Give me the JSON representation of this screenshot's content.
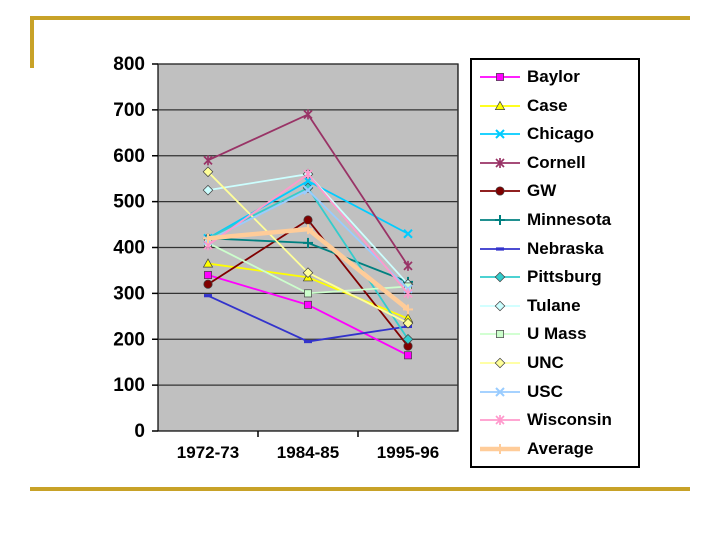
{
  "slide": {
    "accent_color": "#C8A228",
    "background_color": "#FFFFFF"
  },
  "chart_data": {
    "type": "line",
    "title": "",
    "xlabel": "",
    "ylabel": "",
    "categories": [
      "1972-73",
      "1984-85",
      "1995-96"
    ],
    "ylim": [
      0,
      800
    ],
    "ytick_step": 100,
    "yticks": [
      0,
      100,
      200,
      300,
      400,
      500,
      600,
      700,
      800
    ],
    "grid": true,
    "legend_position": "right",
    "plot_bg": "#C0C0C0",
    "gridline_color": "#333333",
    "axis_color": "#000000",
    "series": [
      {
        "name": "Baylor",
        "color": "#FF00FF",
        "marker": "square",
        "values": [
          340,
          275,
          165
        ]
      },
      {
        "name": "Case",
        "color": "#FFFF00",
        "marker": "triangle",
        "values": [
          365,
          335,
          245
        ]
      },
      {
        "name": "Chicago",
        "color": "#00CCFF",
        "marker": "x",
        "values": [
          420,
          545,
          430
        ]
      },
      {
        "name": "Cornell",
        "color": "#993366",
        "marker": "asterisk",
        "values": [
          590,
          690,
          360
        ]
      },
      {
        "name": "GW",
        "color": "#800000",
        "marker": "circle",
        "values": [
          320,
          460,
          185
        ]
      },
      {
        "name": "Minnesota",
        "color": "#008080",
        "marker": "plus",
        "values": [
          420,
          410,
          325
        ]
      },
      {
        "name": "Nebraska",
        "color": "#3333CC",
        "marker": "dash",
        "values": [
          295,
          195,
          228
        ]
      },
      {
        "name": "Pittsburg",
        "color": "#33CCCC",
        "marker": "diamond",
        "values": [
          420,
          530,
          200
        ]
      },
      {
        "name": "Tulane",
        "color": "#CCFFFF",
        "marker": "diamond",
        "values": [
          525,
          560,
          320
        ]
      },
      {
        "name": "U Mass",
        "color": "#CCFFCC",
        "marker": "square",
        "values": [
          410,
          300,
          315
        ]
      },
      {
        "name": "UNC",
        "color": "#FFFF99",
        "marker": "diamond",
        "values": [
          565,
          345,
          235
        ]
      },
      {
        "name": "USC",
        "color": "#99CCFF",
        "marker": "x",
        "values": [
          415,
          525,
          310
        ]
      },
      {
        "name": "Wisconsin",
        "color": "#FF99CC",
        "marker": "asterisk",
        "values": [
          405,
          560,
          300
        ]
      },
      {
        "name": "Average",
        "color": "#FFCC99",
        "marker": "plus",
        "values": [
          420,
          440,
          265
        ],
        "line_width": 4.5
      }
    ]
  }
}
